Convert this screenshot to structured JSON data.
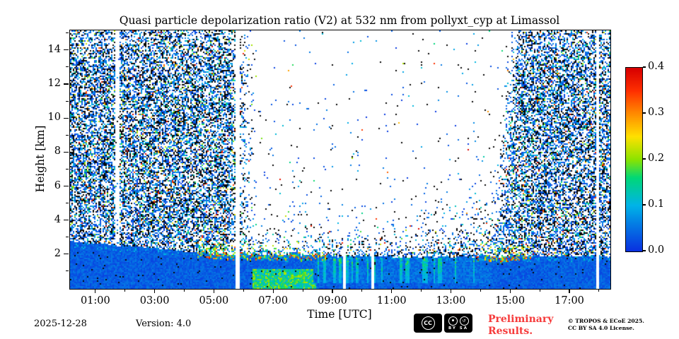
{
  "chart_data": {
    "type": "heatmap",
    "title": "Quasi particle depolarization ratio (V2) at 532 nm from pollyxt_cyp at Limassol",
    "xlabel": "Time [UTC]",
    "ylabel": "Height [km]",
    "x_ticks": [
      "01:00",
      "03:00",
      "05:00",
      "07:00",
      "09:00",
      "11:00",
      "13:00",
      "15:00",
      "17:00"
    ],
    "x_tick_hours": [
      1,
      3,
      5,
      7,
      9,
      11,
      13,
      15,
      17
    ],
    "x_minor_tick_hours": [
      0,
      2,
      4,
      6,
      8,
      10,
      12,
      14,
      16,
      18
    ],
    "y_ticks": [
      "2",
      "4",
      "6",
      "8",
      "10",
      "12",
      "14"
    ],
    "y_tick_km": [
      2,
      4,
      6,
      8,
      10,
      12,
      14
    ],
    "y_minor_tick_km": [
      1,
      3,
      5,
      7,
      9,
      11,
      13,
      15
    ],
    "x_range_hours": [
      0.12,
      18.36
    ],
    "y_range_km": [
      0,
      15.2
    ],
    "colorbar": {
      "ticks": [
        "0.0",
        "0.1",
        "0.2",
        "0.3",
        "0.4"
      ],
      "tick_values": [
        0.0,
        0.1,
        0.2,
        0.3,
        0.4
      ],
      "range": [
        0.0,
        0.4
      ],
      "stops": [
        [
          0.0,
          "#0a30e0"
        ],
        [
          0.25,
          "#00b4e8"
        ],
        [
          0.4,
          "#00d878"
        ],
        [
          0.5,
          "#8ce400"
        ],
        [
          0.625,
          "#ffe100"
        ],
        [
          0.75,
          "#ff8c00"
        ],
        [
          0.875,
          "#ff3000"
        ],
        [
          1.0,
          "#d80000"
        ]
      ]
    },
    "features": {
      "description": "Lidar quicklook: dense blue/black speckle noise at all heights during night (~00:10-05:30 and ~14:40-18:20); mostly white (filtered) above ~4 km during daytime; continuous low-level aerosol layer below ~2-2.8 km with enhanced depolarization streaks (green/yellow/red) near layer top around 05:00-08:30 and 14:00-15:30; green vertical filaments below ~1.8 km from ~08:30-14:20; several narrow white data gaps.",
      "layer_top_profile": [
        [
          0.12,
          2.78
        ],
        [
          2.0,
          2.52
        ],
        [
          4.0,
          2.2
        ],
        [
          5.2,
          2.02
        ],
        [
          6.5,
          1.98
        ],
        [
          9.0,
          1.92
        ],
        [
          12.0,
          1.86
        ],
        [
          14.0,
          1.9
        ],
        [
          16.0,
          1.93
        ],
        [
          18.36,
          1.9
        ]
      ],
      "night_noise_periods_hours": [
        [
          0.12,
          5.52
        ],
        [
          14.35,
          18.36
        ]
      ],
      "day_period_hours": [
        6.45,
        14.35
      ],
      "depol_streak_periods_hours": [
        [
          4.4,
          8.85
        ],
        [
          13.8,
          15.7
        ]
      ],
      "subcloud_filament_period_hours": [
        8.35,
        14.35
      ],
      "bottom_green_period_hours": [
        6.3,
        8.45
      ],
      "data_gap_hours": [
        [
          5.7,
          5.86
        ],
        [
          9.33,
          9.42
        ],
        [
          10.28,
          10.38
        ],
        [
          17.88,
          18.0
        ]
      ],
      "upper_noise_gap_hours": [
        [
          1.66,
          1.8
        ]
      ]
    }
  },
  "footer": {
    "date": "2025-12-28",
    "version": "Version: 4.0",
    "preliminary_line1": "Preliminary",
    "preliminary_line2": "Results.",
    "preliminary_color": "#f63b3b",
    "copyright_line1": "© TROPOS & ECoE 2025.",
    "copyright_line2": "CC BY SA 4.0 License.",
    "cc_logo_text": "CC",
    "cc_label_by": "BY",
    "cc_label_sa": "SA",
    "cc_sa_glyph": "↺"
  }
}
